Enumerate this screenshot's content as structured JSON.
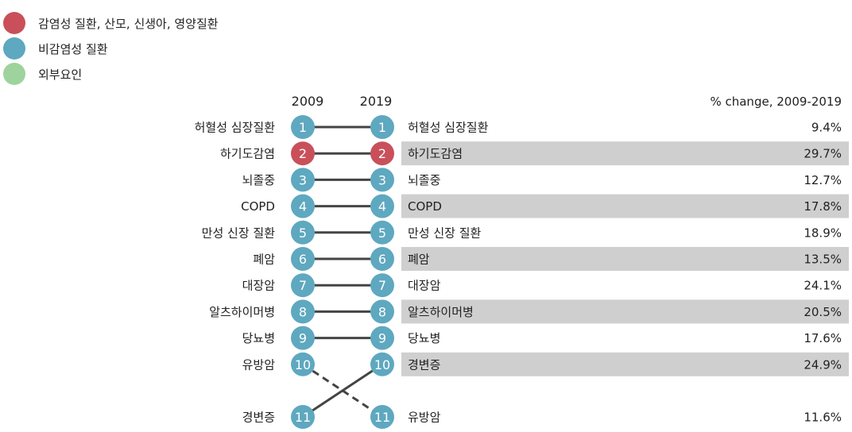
{
  "legend": [
    {
      "label": "감염성 질환, 산모, 신생아, 영양질환",
      "color": "#c9505a"
    },
    {
      "label": "비감염성 질환",
      "color": "#5ea8c0"
    },
    {
      "label": "외부요인",
      "color": "#9ed39e"
    }
  ],
  "chart_data": {
    "type": "slope",
    "left_header": "2009",
    "right_header": "2019",
    "change_header": "% change, 2009-2019",
    "left_ranks": [
      {
        "rank": 1,
        "cause": "허혈성 심장질환",
        "category": 1
      },
      {
        "rank": 2,
        "cause": "하기도감염",
        "category": 0
      },
      {
        "rank": 3,
        "cause": "뇌졸중",
        "category": 1
      },
      {
        "rank": 4,
        "cause": "COPD",
        "category": 1
      },
      {
        "rank": 5,
        "cause": "만성 신장 질환",
        "category": 1
      },
      {
        "rank": 6,
        "cause": "폐암",
        "category": 1
      },
      {
        "rank": 7,
        "cause": "대장암",
        "category": 1
      },
      {
        "rank": 8,
        "cause": "알츠하이머병",
        "category": 1
      },
      {
        "rank": 9,
        "cause": "당뇨병",
        "category": 1
      },
      {
        "rank": 10,
        "cause": "유방암",
        "category": 1
      },
      {
        "rank": 11,
        "cause": "경변증",
        "category": 1
      }
    ],
    "right_ranks": [
      {
        "rank": 1,
        "cause": "허혈성 심장질환",
        "change": "9.4%",
        "category": 1
      },
      {
        "rank": 2,
        "cause": "하기도감염",
        "change": "29.7%",
        "category": 0
      },
      {
        "rank": 3,
        "cause": "뇌졸중",
        "change": "12.7%",
        "category": 1
      },
      {
        "rank": 4,
        "cause": "COPD",
        "change": "17.8%",
        "category": 1
      },
      {
        "rank": 5,
        "cause": "만성 신장 질환",
        "change": "18.9%",
        "category": 1
      },
      {
        "rank": 6,
        "cause": "폐암",
        "change": "13.5%",
        "category": 1
      },
      {
        "rank": 7,
        "cause": "대장암",
        "change": "24.1%",
        "category": 1
      },
      {
        "rank": 8,
        "cause": "알츠하이머병",
        "change": "20.5%",
        "category": 1
      },
      {
        "rank": 9,
        "cause": "당뇨병",
        "change": "17.6%",
        "category": 1
      },
      {
        "rank": 10,
        "cause": "경변증",
        "change": "24.9%",
        "category": 1
      },
      {
        "rank": 11,
        "cause": "유방암",
        "change": "11.6%",
        "category": 1
      }
    ],
    "dashed_connections": [
      "유방암"
    ]
  }
}
